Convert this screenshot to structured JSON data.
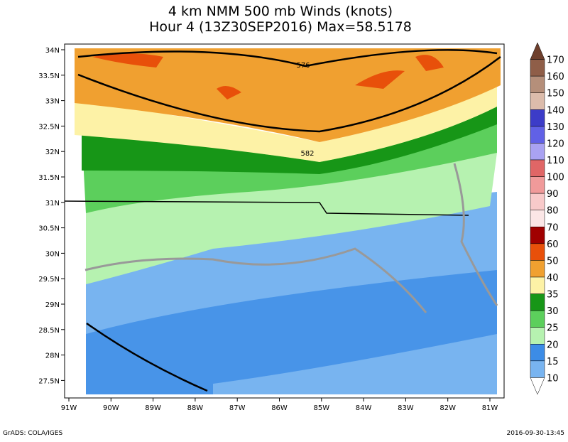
{
  "title": {
    "line1": "4 km NMM 500 mb Winds (knots)",
    "line2": "Hour 4 (13Z30SEP2016) Max=58.5178"
  },
  "lat_labels": [
    "34N",
    "33.5N",
    "33N",
    "32.5N",
    "32N",
    "31.5N",
    "31N",
    "30.5N",
    "30N",
    "29.5N",
    "29N",
    "28.5N",
    "28N",
    "27.5N"
  ],
  "lon_labels": [
    "91W",
    "90W",
    "89W",
    "88W",
    "87W",
    "86W",
    "85W",
    "84W",
    "83W",
    "82W",
    "81W"
  ],
  "contour_labels": [
    "576",
    "582"
  ],
  "colorbar": {
    "labels": [
      "170",
      "160",
      "150",
      "140",
      "130",
      "120",
      "110",
      "100",
      "90",
      "80",
      "70",
      "60",
      "50",
      "40",
      "35",
      "30",
      "25",
      "20",
      "15",
      "10"
    ],
    "colors": [
      "#6e3f2c",
      "#8f5e48",
      "#b58f7a",
      "#dcbcab",
      "#3c3cc8",
      "#6161e6",
      "#a9a2f2",
      "#e06666",
      "#f09a9a",
      "#f8caca",
      "#fbe6e6",
      "#a00000",
      "#e8500a",
      "#f0a030",
      "#fdf2a6",
      "#179617",
      "#5ccf5c",
      "#b6f2b0",
      "#3c8ce6",
      "#78b4f0",
      "#ffffff"
    ]
  },
  "footer": {
    "left": "GrADS: COLA/IGES",
    "right": "2016-09-30-13:45"
  }
}
